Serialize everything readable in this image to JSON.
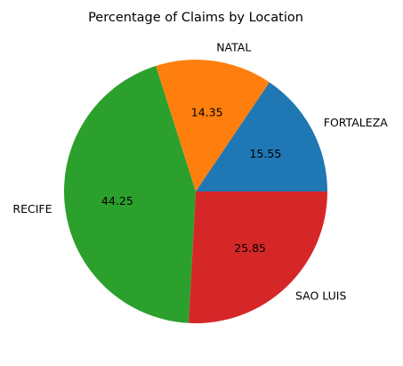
{
  "chart_data": {
    "type": "pie",
    "title": "Percentage of Claims by Location",
    "start_angle_deg": 0,
    "direction": "counterclockwise",
    "slices": [
      {
        "label": "FORTALEZA",
        "value": 15.55,
        "pct_text": "15.55",
        "color": "#1f77b4"
      },
      {
        "label": "NATAL",
        "value": 14.35,
        "pct_text": "14.35",
        "color": "#ff7f0e"
      },
      {
        "label": "RECIFE",
        "value": 44.25,
        "pct_text": "44.25",
        "color": "#2ca02c"
      },
      {
        "label": "SAO LUIS",
        "value": 25.85,
        "pct_text": "25.85",
        "color": "#d62728"
      }
    ]
  }
}
